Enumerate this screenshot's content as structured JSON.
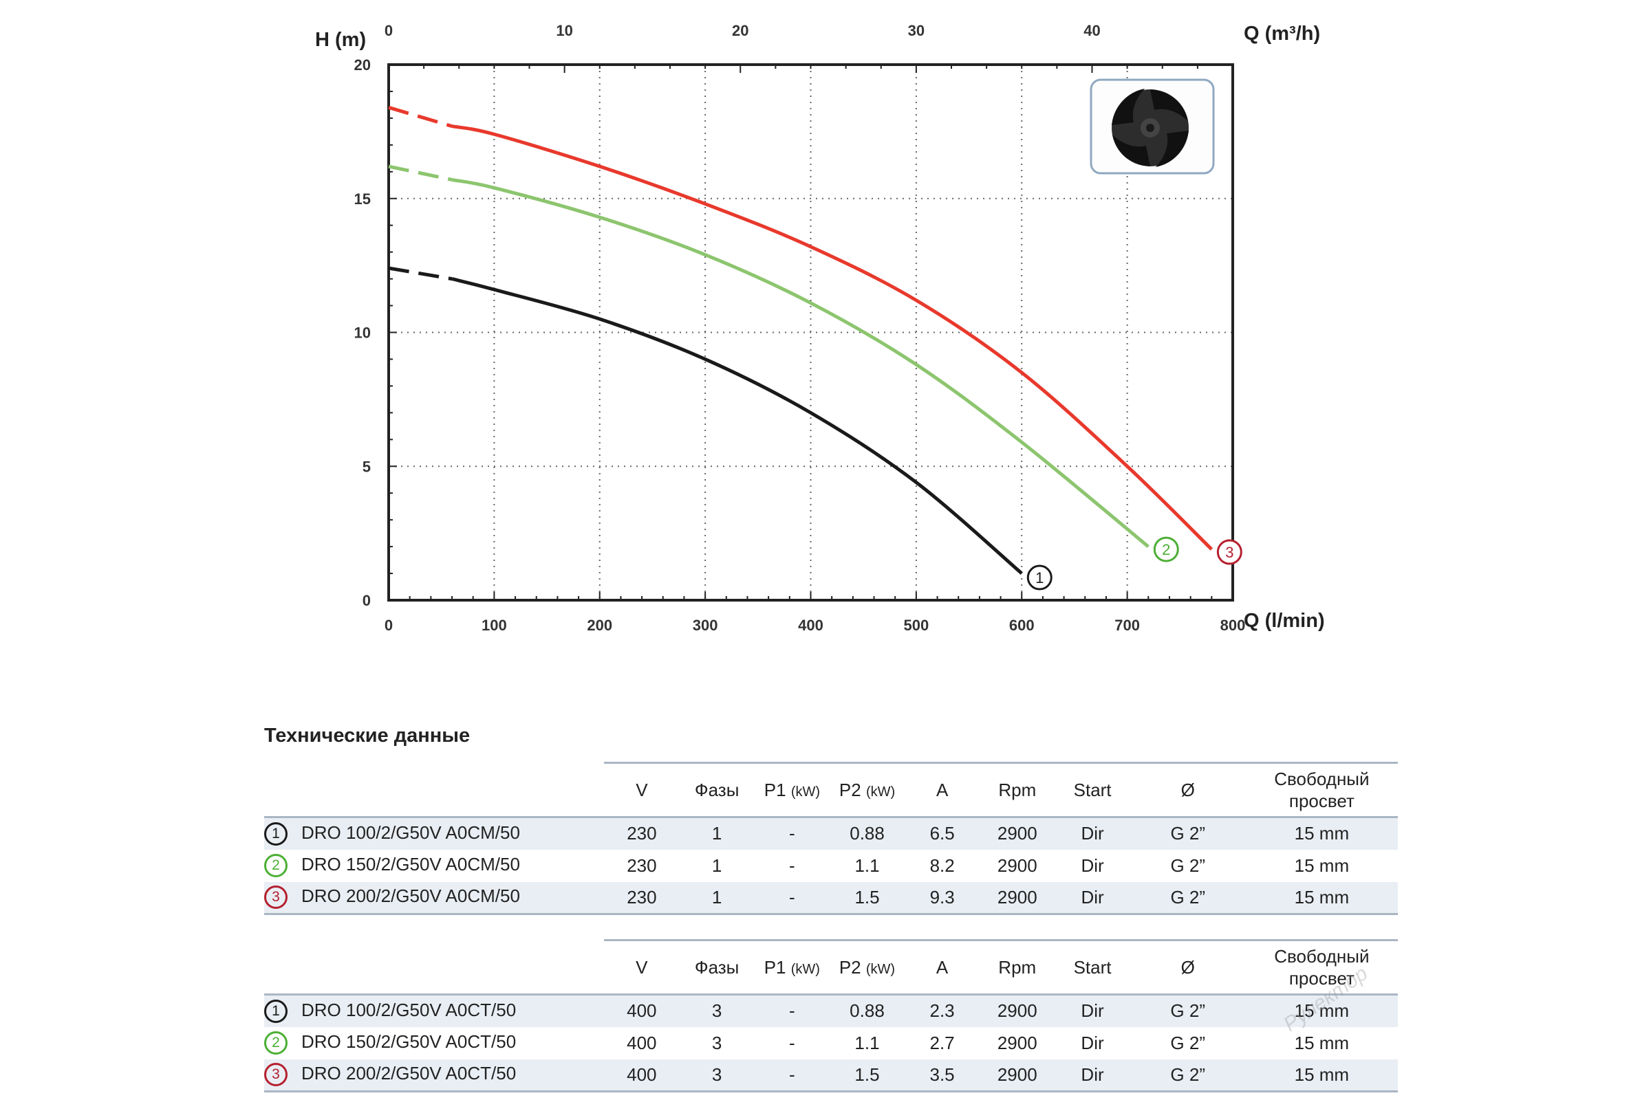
{
  "chart_data": {
    "type": "line",
    "ylabel": "H (m)",
    "xlabel_bottom": "Q (l/min)",
    "xlabel_top": "Q (m³/h)",
    "ylim": [
      0,
      20
    ],
    "xlim": [
      0,
      800
    ],
    "xlim_top": [
      0,
      48
    ],
    "yticks": [
      "0",
      "5",
      "10",
      "15",
      "20"
    ],
    "xticks_bottom": [
      "0",
      "100",
      "200",
      "300",
      "400",
      "500",
      "600",
      "700",
      "800"
    ],
    "xticks_top": [
      "0",
      "10",
      "20",
      "30",
      "40"
    ],
    "grid": true,
    "series": [
      {
        "marker": "1",
        "color": "#1a1a1a",
        "x": [
          0,
          60,
          100,
          200,
          300,
          400,
          500,
          600
        ],
        "y": [
          12.4,
          12.0,
          11.6,
          10.5,
          9.0,
          7.0,
          4.4,
          1.0
        ]
      },
      {
        "marker": "2",
        "color": "#8cc56e",
        "x": [
          0,
          60,
          100,
          200,
          300,
          400,
          500,
          600,
          720
        ],
        "y": [
          16.2,
          15.7,
          15.4,
          14.3,
          12.9,
          11.1,
          8.8,
          5.9,
          2.0
        ]
      },
      {
        "marker": "3",
        "color": "#e8392c",
        "x": [
          0,
          60,
          100,
          200,
          300,
          400,
          500,
          600,
          700,
          780
        ],
        "y": [
          18.4,
          17.7,
          17.4,
          16.2,
          14.8,
          13.2,
          11.2,
          8.5,
          5.0,
          1.9
        ]
      }
    ]
  },
  "table_title": "Технические данные",
  "columns": [
    "V",
    "Фазы",
    "P1",
    "P2",
    "A",
    "Rpm",
    "Start",
    "Ø",
    "Свободный просвет"
  ],
  "unit_kw": "(kW)",
  "marker_colors": [
    "#1a1a1a",
    "#4caf35",
    "#b5202e"
  ],
  "tables": [
    {
      "rows": [
        {
          "marker": "1",
          "model": "DRO 100/2/G50V A0CM/50",
          "V": "230",
          "phases": "1",
          "p1": "-",
          "p2": "0.88",
          "a": "6.5",
          "rpm": "2900",
          "start": "Dir",
          "dia": "G 2”",
          "clearance": "15 mm"
        },
        {
          "marker": "2",
          "model": "DRO 150/2/G50V A0CM/50",
          "V": "230",
          "phases": "1",
          "p1": "-",
          "p2": "1.1",
          "a": "8.2",
          "rpm": "2900",
          "start": "Dir",
          "dia": "G 2”",
          "clearance": "15 mm"
        },
        {
          "marker": "3",
          "model": "DRO 200/2/G50V A0CM/50",
          "V": "230",
          "phases": "1",
          "p1": "-",
          "p2": "1.5",
          "a": "9.3",
          "rpm": "2900",
          "start": "Dir",
          "dia": "G 2”",
          "clearance": "15 mm"
        }
      ]
    },
    {
      "rows": [
        {
          "marker": "1",
          "model": "DRO 100/2/G50V A0CT/50",
          "V": "400",
          "phases": "3",
          "p1": "-",
          "p2": "0.88",
          "a": "2.3",
          "rpm": "2900",
          "start": "Dir",
          "dia": "G 2”",
          "clearance": "15 mm"
        },
        {
          "marker": "2",
          "model": "DRO 150/2/G50V A0CT/50",
          "V": "400",
          "phases": "3",
          "p1": "-",
          "p2": "1.1",
          "a": "2.7",
          "rpm": "2900",
          "start": "Dir",
          "dia": "G 2”",
          "clearance": "15 mm"
        },
        {
          "marker": "3",
          "model": "DRO 200/2/G50V A0CT/50",
          "V": "400",
          "phases": "3",
          "p1": "-",
          "p2": "1.5",
          "a": "3.5",
          "rpm": "2900",
          "start": "Dir",
          "dia": "G 2”",
          "clearance": "15 mm"
        }
      ]
    }
  ],
  "watermark": "Рулектор"
}
